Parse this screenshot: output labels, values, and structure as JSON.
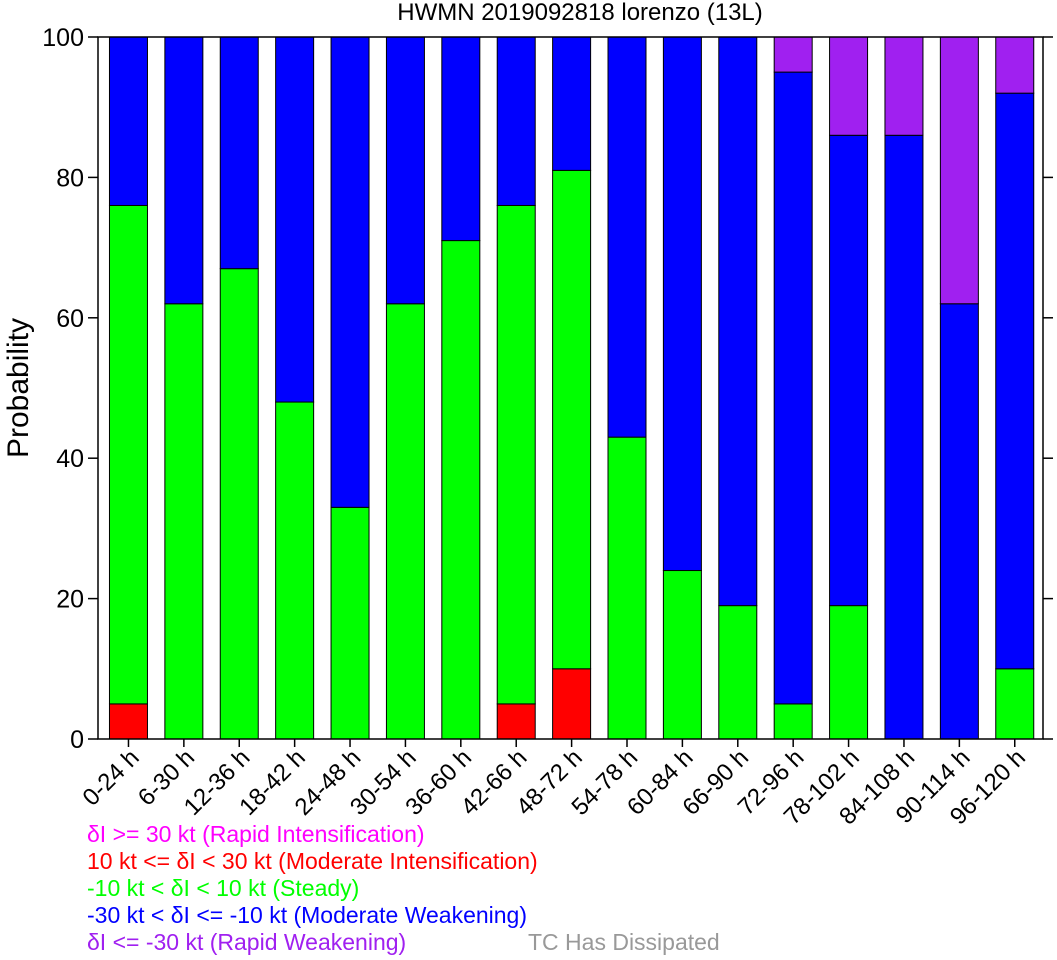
{
  "chart_data": {
    "type": "bar",
    "stacked": true,
    "title": "HWMN 2019092818 lorenzo (13L)",
    "xlabel": "",
    "ylabel": "Probability",
    "ylim": [
      0,
      100
    ],
    "yticks": [
      0,
      20,
      40,
      60,
      80,
      100
    ],
    "grid": false,
    "legend_placement": "bottom-left",
    "categories": [
      "0-24 h",
      "6-30 h",
      "12-36 h",
      "18-42 h",
      "24-48 h",
      "30-54 h",
      "36-60 h",
      "42-66 h",
      "48-72 h",
      "54-78 h",
      "60-84 h",
      "66-90 h",
      "72-96 h",
      "78-102 h",
      "84-108 h",
      "90-114 h",
      "96-120 h"
    ],
    "series": [
      {
        "name": "δI >= 30 kt (Rapid Intensification)",
        "color": "#ff00ff",
        "values": [
          0,
          0,
          0,
          0,
          0,
          0,
          0,
          0,
          0,
          0,
          0,
          0,
          0,
          0,
          0,
          0,
          0
        ]
      },
      {
        "name": "10 kt <= δI < 30 kt (Moderate Intensification)",
        "color": "#ff0000",
        "values": [
          5,
          0,
          0,
          0,
          0,
          0,
          0,
          5,
          10,
          0,
          0,
          0,
          0,
          0,
          0,
          0,
          0
        ]
      },
      {
        "name": "-10 kt < δI < 10 kt (Steady)",
        "color": "#00ff00",
        "values": [
          71,
          62,
          67,
          48,
          33,
          62,
          71,
          71,
          71,
          43,
          24,
          19,
          5,
          19,
          0,
          0,
          10
        ]
      },
      {
        "name": "-30 kt < δI <= -10 kt (Moderate Weakening)",
        "color": "#0000ff",
        "values": [
          24,
          38,
          33,
          52,
          67,
          38,
          29,
          24,
          19,
          57,
          76,
          81,
          90,
          67,
          86,
          62,
          82
        ]
      },
      {
        "name": "δI <= -30 kt (Rapid Weakening)",
        "color": "#a020f0",
        "values": [
          0,
          0,
          0,
          0,
          0,
          0,
          0,
          0,
          0,
          0,
          0,
          0,
          5,
          14,
          14,
          38,
          8
        ]
      }
    ],
    "extra_legend": {
      "name": "TC Has Dissipated",
      "color": "#999999"
    }
  }
}
